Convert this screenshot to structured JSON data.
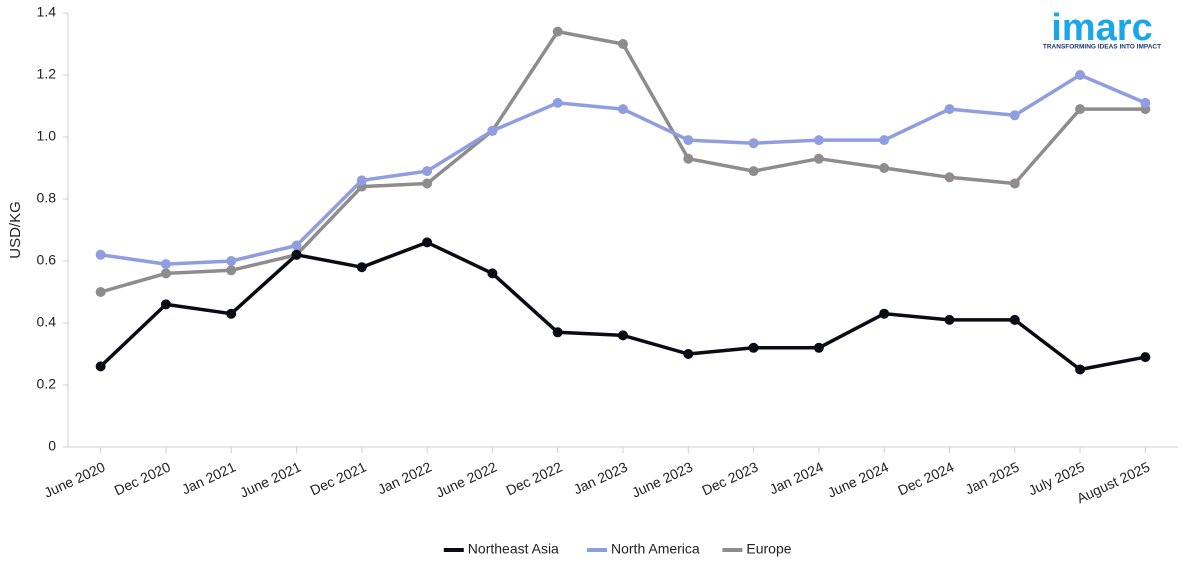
{
  "chart_data": {
    "type": "line",
    "y_label": "USD/KG",
    "categories": [
      "June 2020",
      "Dec 2020",
      "Jan 2021",
      "June 2021",
      "Dec 2021",
      "Jan 2022",
      "June 2022",
      "Dec 2022",
      "Jan 2023",
      "June 2023",
      "Dec 2023",
      "Jan 2024",
      "June 2024",
      "Dec 2024",
      "Jan 2025",
      "July 2025",
      "August 2025"
    ],
    "series": [
      {
        "name": "Northeast Asia",
        "color": "#0b0b16",
        "values": [
          0.26,
          0.46,
          0.43,
          0.62,
          0.58,
          0.66,
          0.56,
          0.37,
          0.36,
          0.3,
          0.32,
          0.32,
          0.43,
          0.41,
          0.41,
          0.25,
          0.29
        ]
      },
      {
        "name": "North America",
        "color": "#8f9ee0",
        "values": [
          0.62,
          0.59,
          0.6,
          0.65,
          0.86,
          0.89,
          1.02,
          1.11,
          1.09,
          0.99,
          0.98,
          0.99,
          0.99,
          1.09,
          1.07,
          1.2,
          1.11
        ]
      },
      {
        "name": "Europe",
        "color": "#8e8c8c",
        "values": [
          0.5,
          0.56,
          0.57,
          0.62,
          0.84,
          0.85,
          1.02,
          1.34,
          1.3,
          0.93,
          0.89,
          0.93,
          0.9,
          0.87,
          0.85,
          1.09,
          1.09
        ]
      }
    ],
    "ylim": [
      0,
      1.4
    ],
    "yticks": [
      0,
      0.2,
      0.4,
      0.6,
      0.8,
      {
        "value": 1,
        "label": "1.0"
      },
      1.2,
      1.4
    ],
    "grid": false,
    "legend": "bottom"
  },
  "logo": {
    "name": "imarc",
    "tagline": "TRANSFORMING IDEAS INTO IMPACT"
  }
}
